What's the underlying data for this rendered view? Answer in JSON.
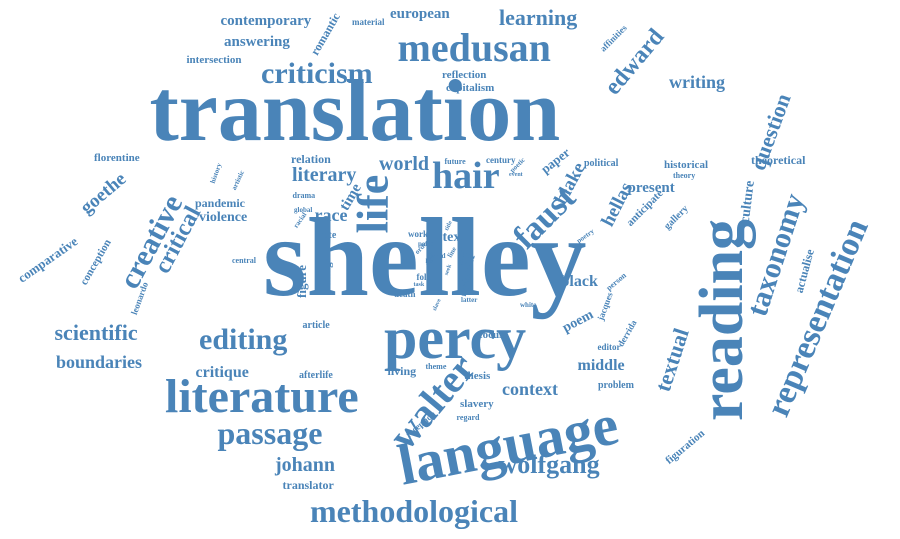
{
  "color": "#4a84b8",
  "words": [
    "shelley",
    "translation",
    "language",
    "percy",
    "reading",
    "literature",
    "life",
    "walter",
    "faust",
    "hair",
    "medusan",
    "criticism",
    "editing",
    "wolfgang",
    "methodological",
    "representation",
    "taxonomy",
    "passage",
    "creative",
    "critical",
    "scientific",
    "edward",
    "learning",
    "european",
    "contemporary",
    "answering",
    "intersection",
    "romantic",
    "material",
    "affinities",
    "reflection",
    "capitalism",
    "writing",
    "question",
    "theoretical",
    "historical",
    "political",
    "gallery",
    "anticipate",
    "hellas",
    "blake",
    "paper",
    "century",
    "future",
    "world",
    "literary",
    "relation",
    "time",
    "race",
    "present",
    "culture",
    "goethe",
    "comparative",
    "conception",
    "pandemic",
    "violence",
    "florentine",
    "history",
    "artistic",
    "drama",
    "global",
    "racial",
    "boundaries",
    "leonardo",
    "critique",
    "afterlife",
    "figure",
    "note",
    "image",
    "central",
    "article",
    "work",
    "point",
    "word",
    "text",
    "motif",
    "myth",
    "black",
    "poem",
    "jacques",
    "derrida",
    "editor",
    "focus",
    "middle",
    "context",
    "slavery",
    "thesis",
    "theme",
    "living",
    "reception",
    "regard",
    "problem",
    "textual",
    "figuration",
    "johann",
    "translator",
    "folie",
    "death",
    "task",
    "seek",
    "latter",
    "white",
    "person",
    "slave",
    "order",
    "office",
    "poetic",
    "event",
    "theory",
    "mother",
    "poetry",
    "actualise",
    "title",
    "line",
    "last"
  ]
}
